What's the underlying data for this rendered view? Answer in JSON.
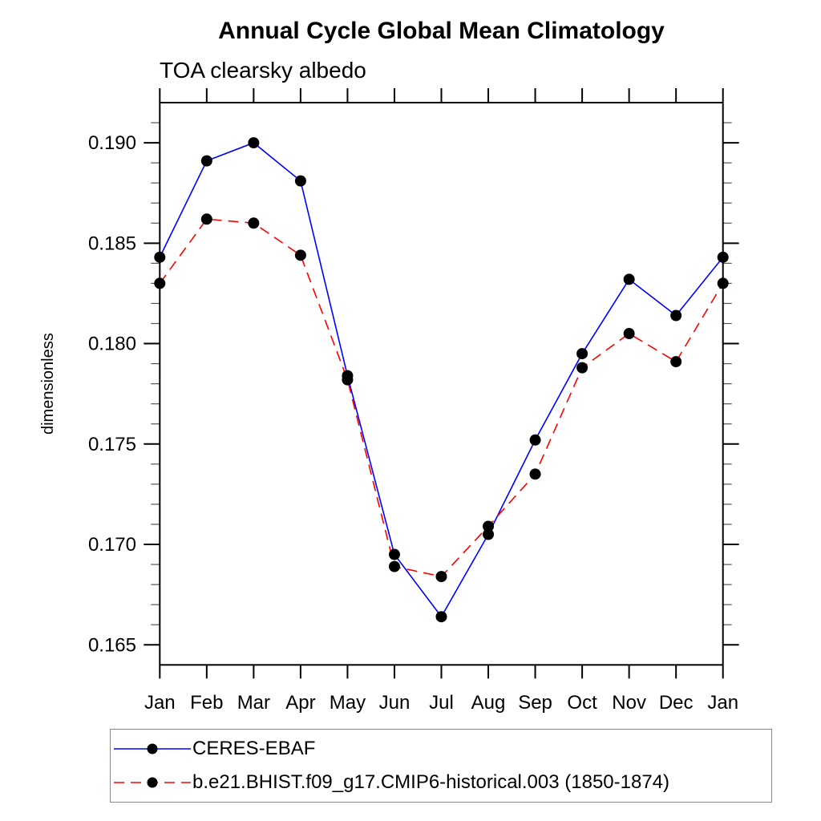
{
  "page": {
    "background": "#ffffff"
  },
  "chart_data": {
    "type": "line",
    "title": "Annual Cycle Global Mean Climatology",
    "subtitle": "TOA clearsky albedo",
    "xlabel": "",
    "ylabel": "dimensionless",
    "categories": [
      "Jan",
      "Feb",
      "Mar",
      "Apr",
      "May",
      "Jun",
      "Jul",
      "Aug",
      "Sep",
      "Oct",
      "Nov",
      "Dec",
      "Jan"
    ],
    "ylim": [
      0.164,
      0.192
    ],
    "y_major_ticks": [
      0.165,
      0.17,
      0.175,
      0.18,
      0.185,
      0.19
    ],
    "y_major_tick_labels": [
      "0.165",
      "0.170",
      "0.175",
      "0.180",
      "0.185",
      "0.190"
    ],
    "y_minor_step": 0.001,
    "grid": false,
    "legend_position": "bottom-left-box",
    "axis_color": "#000000",
    "marker_color": "#000000",
    "series": [
      {
        "name": "CERES-EBAF",
        "color": "#0000ff",
        "line_style": "solid",
        "marker": "filled-circle",
        "values": [
          0.1843,
          0.1891,
          0.19,
          0.1881,
          0.1784,
          0.1695,
          0.1664,
          0.1705,
          0.1752,
          0.1795,
          0.1832,
          0.1814,
          0.1843
        ]
      },
      {
        "name": "b.e21.BHIST.f09_g17.CMIP6-historical.003 (1850-1874)",
        "color": "#ff0000",
        "line_style": "dashed",
        "marker": "filled-circle",
        "values": [
          0.183,
          0.1862,
          0.186,
          0.1844,
          0.1782,
          0.1689,
          0.1684,
          0.1709,
          0.1735,
          0.1788,
          0.1805,
          0.1791,
          0.183
        ]
      }
    ]
  }
}
